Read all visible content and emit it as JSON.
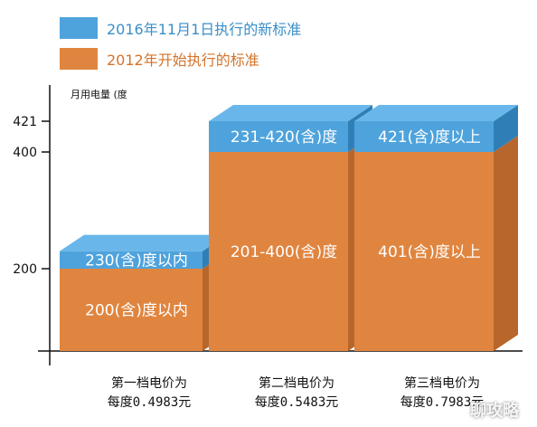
{
  "colors": {
    "new_standard": "#4fa3dc",
    "new_standard_top": "#69b7ea",
    "new_standard_side": "#2f7fb6",
    "old_standard": "#e0853f",
    "old_standard_top": "#eea060",
    "old_standard_side": "#b8662b",
    "axis": "#111111"
  },
  "legend": [
    {
      "label": "2016年11月1日执行的新标准",
      "color": "#4fa3dc",
      "text_color": "#3a8fc8"
    },
    {
      "label": "2012年开始执行的标准",
      "color": "#e0853f",
      "text_color": "#d3732b"
    }
  ],
  "chart_data": {
    "type": "bar",
    "subtype": "stacked-3d",
    "ylabel": "月用电量 (度",
    "yticks": [
      200,
      400,
      421
    ],
    "ylim": [
      0,
      460
    ],
    "categories": [
      "第一档电价为",
      "第二档电价为",
      "第三档电价为"
    ],
    "category_prices": [
      "每度0.4983元",
      "每度0.5483元",
      "每度0.7983元"
    ],
    "series": [
      {
        "name": "2012年开始执行的标准",
        "values": [
          200,
          400,
          400
        ],
        "labels": [
          "200(含)度以内",
          "201-400(含)度",
          "401(含)度以上"
        ]
      },
      {
        "name": "2016年11月1日执行的新标准",
        "values": [
          230,
          421,
          421
        ],
        "labels": [
          "230(含)度以内",
          "231-420(含)度",
          "421(含)度以上"
        ]
      }
    ],
    "grid": false,
    "legend_position": "top-left"
  },
  "watermark": "聊攻略"
}
